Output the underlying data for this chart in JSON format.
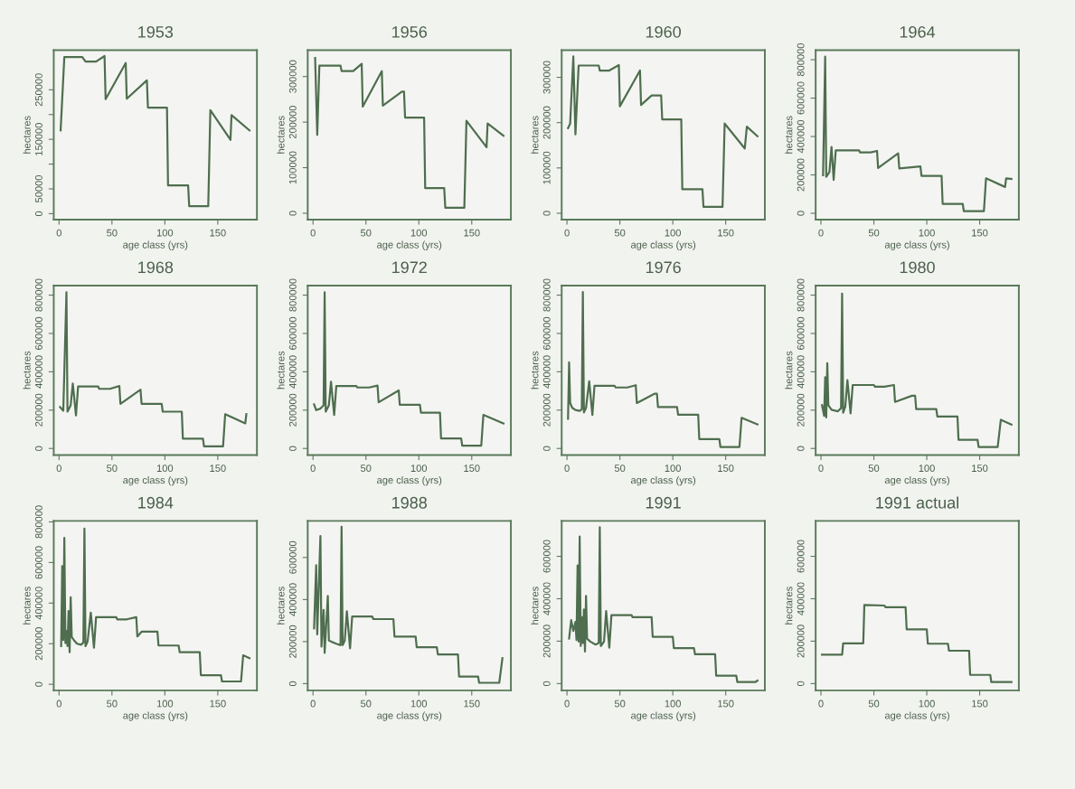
{
  "chart_data": [
    {
      "type": "line",
      "title": "1953",
      "xlabel": "age class (yrs)",
      "ylabel": "hectares",
      "color": "#4f6e4f",
      "xlim": [
        -5,
        187
      ],
      "xticks": [
        0,
        50,
        100,
        150
      ],
      "ylim": [
        -12000,
        330000
      ],
      "yticks": [
        0,
        50000,
        {
          "value": 100000,
          "label": null
        },
        150000,
        {
          "value": 200000,
          "label": null
        },
        250000
      ],
      "x": [
        1.5,
        5,
        22,
        25,
        35,
        43,
        44,
        63,
        64,
        83,
        84,
        102,
        103,
        122,
        123,
        141,
        143,
        162,
        163,
        180
      ],
      "values": [
        168000,
        316000,
        316000,
        307000,
        307000,
        318000,
        231000,
        304000,
        232000,
        269000,
        214000,
        214000,
        57000,
        57000,
        15000,
        15000,
        209000,
        149000,
        199000,
        168000
      ]
    },
    {
      "type": "line",
      "title": "1956",
      "xlabel": "age class (yrs)",
      "ylabel": "hectares",
      "color": "#4f6e4f",
      "xlim": [
        -5,
        187
      ],
      "xticks": [
        0,
        50,
        100,
        150
      ],
      "ylim": [
        -14000,
        358000
      ],
      "yticks": [
        0,
        100000,
        200000,
        300000
      ],
      "x": [
        2,
        4,
        6,
        26,
        27,
        38,
        46,
        47,
        65,
        66,
        84,
        86,
        87,
        105,
        106,
        124,
        125,
        143,
        145,
        164,
        165,
        180
      ],
      "values": [
        341000,
        172000,
        324000,
        324000,
        312000,
        312000,
        328000,
        234000,
        312000,
        236000,
        267000,
        267000,
        210000,
        210000,
        55000,
        55000,
        12000,
        12000,
        203000,
        145000,
        197000,
        170000
      ]
    },
    {
      "type": "line",
      "title": "1960",
      "xlabel": "age class (yrs)",
      "ylabel": "hectares",
      "color": "#4f6e4f",
      "xlim": [
        -5,
        187
      ],
      "xticks": [
        0,
        50,
        100,
        150
      ],
      "ylim": [
        -14000,
        360000
      ],
      "yticks": [
        0,
        100000,
        200000,
        300000
      ],
      "x": [
        1,
        3,
        6,
        8,
        11,
        30,
        31,
        40,
        49,
        50,
        69,
        70,
        80,
        89,
        90,
        108,
        109,
        128,
        129,
        147,
        149,
        168,
        170,
        180
      ],
      "values": [
        188000,
        198000,
        346000,
        174000,
        326000,
        326000,
        315000,
        315000,
        327000,
        236000,
        315000,
        239000,
        260000,
        260000,
        207000,
        207000,
        53000,
        53000,
        14000,
        14000,
        198000,
        143000,
        191000,
        170000
      ]
    },
    {
      "type": "line",
      "title": "1964",
      "xlabel": "age class (yrs)",
      "ylabel": "hectares",
      "color": "#4f6e4f",
      "xlim": [
        -5,
        187
      ],
      "xticks": [
        0,
        50,
        100,
        150
      ],
      "ylim": [
        -33000,
        850000
      ],
      "yticks": [
        0,
        200000,
        400000,
        600000,
        800000
      ],
      "x": [
        2,
        4,
        5,
        8,
        10,
        12,
        14,
        36,
        37,
        47,
        53,
        54,
        73,
        74,
        94,
        95,
        114,
        115,
        134,
        135,
        154,
        156,
        174,
        175,
        180
      ],
      "values": [
        198000,
        816000,
        190000,
        215000,
        345000,
        174000,
        328000,
        328000,
        317000,
        317000,
        325000,
        236000,
        312000,
        234000,
        244000,
        195000,
        195000,
        49000,
        49000,
        11000,
        11000,
        182000,
        137000,
        182000,
        179000
      ]
    },
    {
      "type": "line",
      "title": "1968",
      "xlabel": "age class (yrs)",
      "ylabel": "hectares",
      "color": "#4f6e4f",
      "xlim": [
        -5,
        187
      ],
      "xticks": [
        0,
        50,
        100,
        150
      ],
      "ylim": [
        -34000,
        850000
      ],
      "yticks": [
        0,
        200000,
        400000,
        600000,
        800000
      ],
      "x": [
        1,
        4,
        7,
        8,
        11,
        13,
        16,
        18,
        37,
        38,
        48,
        57,
        58,
        77,
        78,
        97,
        98,
        116,
        117,
        136,
        137,
        155,
        157,
        176,
        177
      ],
      "values": [
        216000,
        197000,
        815000,
        192000,
        225000,
        339000,
        172000,
        323000,
        323000,
        311000,
        311000,
        326000,
        233000,
        307000,
        233000,
        233000,
        192000,
        192000,
        51000,
        51000,
        11000,
        11000,
        179000,
        131000,
        179000
      ]
    },
    {
      "type": "line",
      "title": "1972",
      "xlabel": "age class (yrs)",
      "ylabel": "hectares",
      "color": "#4f6e4f",
      "xlim": [
        -5,
        187
      ],
      "xticks": [
        0,
        50,
        100,
        150
      ],
      "ylim": [
        -34000,
        850000
      ],
      "yticks": [
        0,
        200000,
        400000,
        600000,
        800000
      ],
      "x": [
        1,
        3,
        7,
        10,
        11,
        12,
        15,
        17,
        20,
        22,
        41,
        42,
        53,
        61,
        62,
        81,
        82,
        101,
        102,
        120,
        121,
        140,
        141,
        159,
        161,
        180
      ],
      "values": [
        230000,
        200000,
        208000,
        225000,
        815000,
        192000,
        225000,
        348000,
        175000,
        326000,
        326000,
        318000,
        318000,
        328000,
        241000,
        303000,
        228000,
        228000,
        187000,
        187000,
        52000,
        52000,
        15000,
        15000,
        175000,
        130000
      ]
    },
    {
      "type": "line",
      "title": "1976",
      "xlabel": "age class (yrs)",
      "ylabel": "hectares",
      "color": "#4f6e4f",
      "xlim": [
        -5,
        187
      ],
      "xticks": [
        0,
        50,
        100,
        150
      ],
      "ylim": [
        -34000,
        850000
      ],
      "yticks": [
        0,
        200000,
        400000,
        600000,
        800000
      ],
      "x": [
        1,
        2,
        3,
        5,
        8,
        12,
        14,
        15,
        16,
        18,
        21,
        24,
        26,
        45,
        46,
        57,
        65,
        66,
        83,
        85,
        86,
        104,
        105,
        124,
        125,
        144,
        145,
        163,
        165,
        180
      ],
      "values": [
        155000,
        449000,
        237000,
        212000,
        201000,
        196000,
        204000,
        816000,
        188000,
        212000,
        351000,
        175000,
        327000,
        327000,
        318000,
        318000,
        330000,
        237000,
        286000,
        286000,
        216000,
        216000,
        176000,
        176000,
        49000,
        49000,
        8000,
        8000,
        160000,
        126000
      ]
    },
    {
      "type": "line",
      "title": "1980",
      "xlabel": "age class (yrs)",
      "ylabel": "hectares",
      "color": "#4f6e4f",
      "xlim": [
        -5,
        187
      ],
      "xticks": [
        0,
        50,
        100,
        150
      ],
      "ylim": [
        -34000,
        850000
      ],
      "yticks": [
        0,
        200000,
        400000,
        600000,
        800000
      ],
      "x": [
        1,
        3,
        4,
        5,
        6,
        7,
        10,
        16,
        19,
        20,
        21,
        23,
        25,
        28,
        30,
        50,
        51,
        60,
        69,
        70,
        86,
        89,
        90,
        109,
        110,
        129,
        130,
        148,
        149,
        167,
        170,
        180
      ],
      "values": [
        226000,
        170000,
        372000,
        162000,
        445000,
        226000,
        202000,
        194000,
        210000,
        808000,
        186000,
        218000,
        356000,
        183000,
        331000,
        331000,
        322000,
        322000,
        331000,
        243000,
        275000,
        275000,
        205000,
        205000,
        167000,
        167000,
        45000,
        45000,
        8000,
        8000,
        150000,
        125000
      ]
    },
    {
      "type": "line",
      "title": "1984",
      "xlabel": "age class (yrs)",
      "ylabel": "hectares",
      "color": "#4f6e4f",
      "xlim": [
        -5,
        187
      ],
      "xticks": [
        0,
        50,
        100,
        150
      ],
      "ylim": [
        -30000,
        805000
      ],
      "yticks": [
        0,
        200000,
        400000,
        600000,
        800000
      ],
      "x": [
        2,
        3,
        4,
        5,
        6,
        7,
        8,
        9,
        10,
        11,
        12,
        14,
        17,
        21,
        23,
        24,
        25,
        27,
        30,
        33,
        35,
        54,
        55,
        64,
        73,
        74,
        78,
        93,
        94,
        113,
        114,
        133,
        134,
        153,
        154,
        172,
        174,
        180
      ],
      "values": [
        188000,
        582000,
        218000,
        722000,
        203000,
        263000,
        188000,
        361000,
        158000,
        429000,
        233000,
        218000,
        200000,
        195000,
        206000,
        767000,
        188000,
        211000,
        353000,
        180000,
        331000,
        331000,
        320000,
        320000,
        331000,
        236000,
        259000,
        259000,
        191000,
        191000,
        158000,
        158000,
        45000,
        45000,
        14000,
        14000,
        143000,
        128000
      ]
    },
    {
      "type": "line",
      "title": "1988",
      "xlabel": "age class (yrs)",
      "ylabel": "hectares",
      "color": "#4f6e4f",
      "xlim": [
        -5,
        187
      ],
      "xticks": [
        0,
        50,
        100,
        150
      ],
      "ylim": [
        -32000,
        774000
      ],
      "yticks": [
        0,
        200000,
        400000,
        600000
      ],
      "x": [
        1,
        3,
        4,
        7,
        8,
        10,
        11,
        14,
        15,
        18,
        22,
        26,
        27,
        28,
        30,
        32,
        35,
        37,
        56,
        57,
        76,
        77,
        97,
        98,
        117,
        118,
        137,
        138,
        156,
        157,
        176,
        179
      ],
      "values": [
        263000,
        563000,
        234000,
        702000,
        176000,
        351000,
        146000,
        417000,
        205000,
        198000,
        190000,
        183000,
        746000,
        183000,
        205000,
        344000,
        168000,
        319000,
        319000,
        307000,
        307000,
        224000,
        224000,
        173000,
        173000,
        139000,
        139000,
        34000,
        34000,
        4000,
        4000,
        121000
      ]
    },
    {
      "type": "line",
      "title": "1991",
      "xlabel": "age class (yrs)",
      "ylabel": "hectares",
      "color": "#4f6e4f",
      "xlim": [
        -5,
        187
      ],
      "xticks": [
        0,
        50,
        100,
        150
      ],
      "ylim": [
        -32000,
        767000
      ],
      "yticks": [
        0,
        200000,
        400000,
        600000
      ],
      "x": [
        2,
        4,
        6,
        8,
        9,
        10,
        11,
        12,
        13,
        14,
        15,
        16,
        17,
        18,
        19,
        22,
        27,
        30,
        31,
        32,
        35,
        37,
        40,
        42,
        61,
        62,
        80,
        81,
        100,
        101,
        120,
        121,
        140,
        141,
        160,
        161,
        178,
        180
      ],
      "values": [
        212000,
        299000,
        248000,
        291000,
        205000,
        557000,
        198000,
        693000,
        177000,
        313000,
        191000,
        349000,
        151000,
        413000,
        212000,
        198000,
        184000,
        191000,
        737000,
        177000,
        198000,
        342000,
        169000,
        323000,
        323000,
        313000,
        313000,
        220000,
        220000,
        167000,
        167000,
        138000,
        138000,
        37000,
        37000,
        7000,
        7000,
        14000
      ]
    },
    {
      "type": "line",
      "title": "1991 actual",
      "xlabel": "age class (yrs)",
      "ylabel": "hectares",
      "color": "#4f6e4f",
      "xlim": [
        -5,
        187
      ],
      "xticks": [
        0,
        50,
        100,
        150
      ],
      "ylim": [
        -32000,
        767000
      ],
      "yticks": [
        0,
        200000,
        400000,
        600000
      ],
      "x": [
        1,
        20,
        21,
        40,
        41,
        60,
        61,
        80,
        81,
        100,
        101,
        120,
        121,
        140,
        141,
        160,
        161,
        180
      ],
      "values": [
        136000,
        136000,
        190000,
        190000,
        371000,
        368000,
        360000,
        360000,
        256000,
        256000,
        188000,
        188000,
        155000,
        155000,
        41000,
        41000,
        7000,
        7000
      ]
    }
  ]
}
